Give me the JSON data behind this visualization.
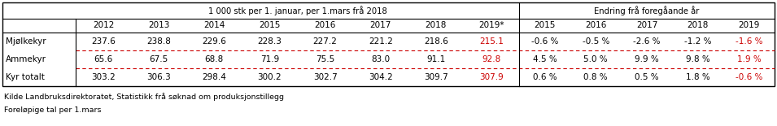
{
  "header1_text": "1 000 stk per 1. januar, per 1.mars frå 2018",
  "header2_text": "Endring frå foregåande år",
  "col_years_main": [
    "2012",
    "2013",
    "2014",
    "2015",
    "2016",
    "2017",
    "2018",
    "2019*"
  ],
  "col_years_change": [
    "2015",
    "2016",
    "2017",
    "2018",
    "2019"
  ],
  "rows": [
    {
      "label": "Mjølkekyr",
      "main_values": [
        "237.6",
        "238.8",
        "229.6",
        "228.3",
        "227.2",
        "221.2",
        "218.6",
        "215.1"
      ],
      "change_values": [
        "-0.6 %",
        "-0.5 %",
        "-2.6 %",
        "-1.2 %",
        "-1.6 %"
      ],
      "last_main_red": true,
      "last_change_red": true
    },
    {
      "label": "Ammekyr",
      "main_values": [
        "65.6",
        "67.5",
        "68.8",
        "71.9",
        "75.5",
        "83.0",
        "91.1",
        "92.8"
      ],
      "change_values": [
        "4.5 %",
        "5.0 %",
        "9.9 %",
        "9.8 %",
        "1.9 %"
      ],
      "last_main_red": true,
      "last_change_red": true
    },
    {
      "label": "Kyr totalt",
      "main_values": [
        "303.2",
        "306.3",
        "298.4",
        "300.2",
        "302.7",
        "304.2",
        "309.7",
        "307.9"
      ],
      "change_values": [
        "0.6 %",
        "0.8 %",
        "0.5 %",
        "1.8 %",
        "-0.6 %"
      ],
      "last_main_red": true,
      "last_change_red": true
    }
  ],
  "footer1": "Kilde Landbruksdirektoratet, Statistikk frå søknad om produksjonstillegg",
  "footer2": "Foreløpige tal per 1.mars",
  "red_color": "#cc0000",
  "black_color": "#000000",
  "bg_color": "#ffffff",
  "border_color": "#000000",
  "dashed_color": "#cc0000",
  "figsize": [
    9.55,
    1.55
  ],
  "dpi": 100,
  "fs_header": 7.2,
  "fs_data": 7.5,
  "fs_footer": 6.8
}
